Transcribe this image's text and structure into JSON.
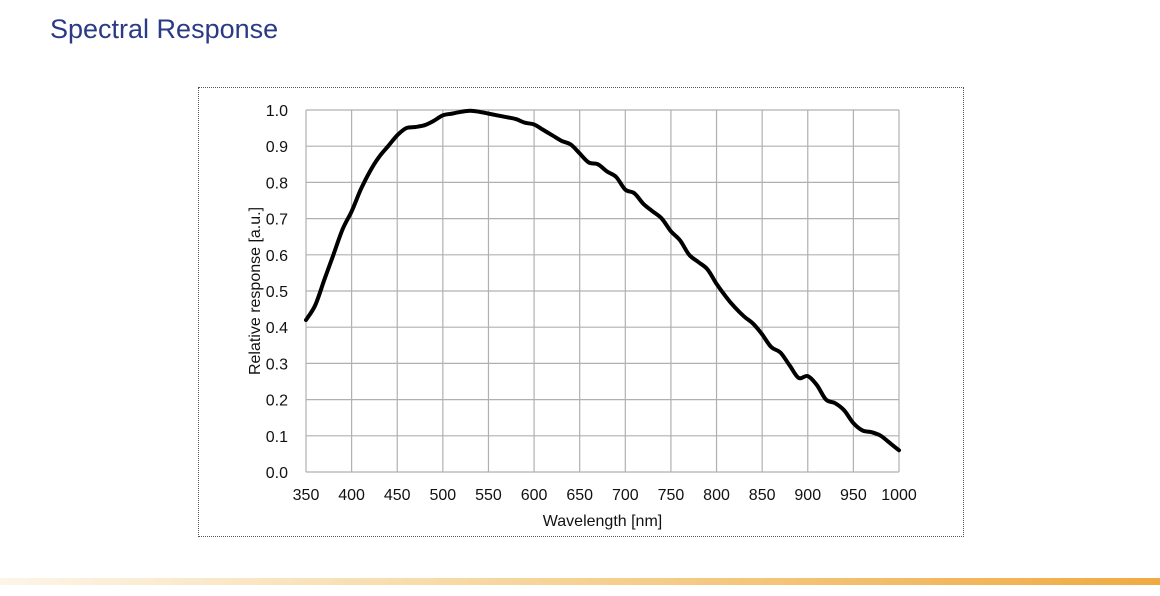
{
  "page": {
    "title": "Spectral Response"
  },
  "colors": {
    "title": "#2b3a85",
    "curve": "#000000",
    "grid": "#b0b0b0",
    "accent_bar": "#f0aa42"
  },
  "chart_data": {
    "type": "line",
    "title": "",
    "xlabel": "Wavelength [nm]",
    "ylabel": "Relative response [a.u.]",
    "xlim": [
      350,
      1000
    ],
    "ylim": [
      0.0,
      1.0
    ],
    "grid": true,
    "x_ticks": [
      "350",
      "400",
      "450",
      "500",
      "550",
      "600",
      "650",
      "700",
      "750",
      "800",
      "850",
      "900",
      "950",
      "1000"
    ],
    "y_ticks": [
      "0.0",
      "0.1",
      "0.2",
      "0.3",
      "0.4",
      "0.5",
      "0.6",
      "0.7",
      "0.8",
      "0.9",
      "1.0"
    ],
    "series": [
      {
        "x": [
          350,
          360,
          370,
          380,
          390,
          400,
          410,
          420,
          430,
          440,
          450,
          460,
          470,
          480,
          490,
          500,
          510,
          520,
          530,
          540,
          550,
          560,
          570,
          580,
          590,
          600,
          610,
          620,
          630,
          640,
          650,
          660,
          670,
          680,
          690,
          700,
          710,
          720,
          730,
          740,
          750,
          760,
          770,
          780,
          790,
          800,
          810,
          820,
          830,
          840,
          850,
          860,
          870,
          880,
          890,
          900,
          910,
          920,
          930,
          940,
          950,
          960,
          970,
          980,
          990,
          1000
        ],
        "y": [
          0.42,
          0.46,
          0.53,
          0.6,
          0.67,
          0.72,
          0.78,
          0.83,
          0.87,
          0.9,
          0.93,
          0.95,
          0.953,
          0.958,
          0.97,
          0.985,
          0.99,
          0.995,
          0.998,
          0.995,
          0.99,
          0.985,
          0.98,
          0.975,
          0.965,
          0.96,
          0.945,
          0.93,
          0.915,
          0.905,
          0.88,
          0.855,
          0.85,
          0.83,
          0.815,
          0.78,
          0.77,
          0.74,
          0.72,
          0.7,
          0.665,
          0.64,
          0.6,
          0.58,
          0.56,
          0.52,
          0.485,
          0.455,
          0.43,
          0.41,
          0.38,
          0.345,
          0.33,
          0.295,
          0.26,
          0.265,
          0.24,
          0.2,
          0.19,
          0.17,
          0.135,
          0.115,
          0.11,
          0.1,
          0.08,
          0.06
        ]
      }
    ]
  }
}
